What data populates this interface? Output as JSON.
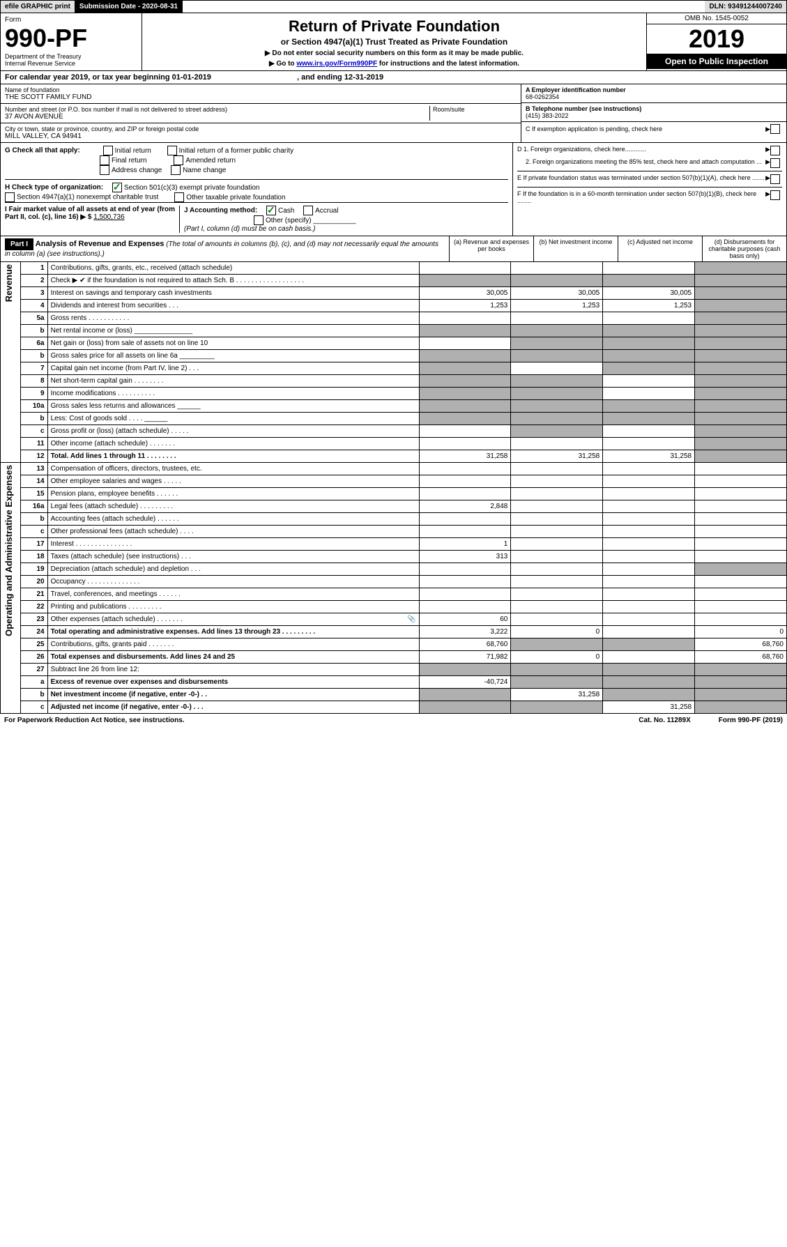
{
  "topbar": {
    "efile": "efile GRAPHIC print",
    "subdate_label": "Submission Date - 2020-08-31",
    "dln": "DLN: 93491244007240"
  },
  "header": {
    "form_label": "Form",
    "form_number": "990-PF",
    "dept1": "Department of the Treasury",
    "dept2": "Internal Revenue Service",
    "title": "Return of Private Foundation",
    "subtitle": "or Section 4947(a)(1) Trust Treated as Private Foundation",
    "note1": "▶ Do not enter social security numbers on this form as it may be made public.",
    "note2_prefix": "▶ Go to ",
    "note2_link": "www.irs.gov/Form990PF",
    "note2_suffix": " for instructions and the latest information.",
    "omb": "OMB No. 1545-0052",
    "year": "2019",
    "open": "Open to Public Inspection"
  },
  "calyear": {
    "text": "For calendar year 2019, or tax year beginning 01-01-2019",
    "ending": ", and ending 12-31-2019"
  },
  "entity": {
    "name_label": "Name of foundation",
    "name": "THE SCOTT FAMILY FUND",
    "addr_label": "Number and street (or P.O. box number if mail is not delivered to street address)",
    "addr": "37 AVON AVENUE",
    "room_label": "Room/suite",
    "city_label": "City or town, state or province, country, and ZIP or foreign postal code",
    "city": "MILL VALLEY, CA  94941",
    "a_label": "A Employer identification number",
    "a_val": "68-0262354",
    "b_label": "B Telephone number (see instructions)",
    "b_val": "(415) 383-2022",
    "c_label": "C If exemption application is pending, check here"
  },
  "checks": {
    "g_label": "G Check all that apply:",
    "g_opts": [
      "Initial return",
      "Initial return of a former public charity",
      "Final return",
      "Amended return",
      "Address change",
      "Name change"
    ],
    "h_label": "H Check type of organization:",
    "h_opt1": "Section 501(c)(3) exempt private foundation",
    "h_opt2": "Section 4947(a)(1) nonexempt charitable trust",
    "h_opt3": "Other taxable private foundation",
    "i_label": "I Fair market value of all assets at end of year (from Part II, col. (c), line 16) ▶ $",
    "i_val": "1,500,736",
    "j_label": "J Accounting method:",
    "j_cash": "Cash",
    "j_accrual": "Accrual",
    "j_other": "Other (specify)",
    "j_note": "(Part I, column (d) must be on cash basis.)",
    "d1": "D 1. Foreign organizations, check here............",
    "d2": "2. Foreign organizations meeting the 85% test, check here and attach computation ...",
    "e": "E  If private foundation status was terminated under section 507(b)(1)(A), check here .......",
    "f": "F  If the foundation is in a 60-month termination under section 507(b)(1)(B), check here ........"
  },
  "part1": {
    "label": "Part I",
    "title": "Analysis of Revenue and Expenses",
    "title_note": "(The total of amounts in columns (b), (c), and (d) may not necessarily equal the amounts in column (a) (see instructions).)",
    "col_a": "(a)   Revenue and expenses per books",
    "col_b": "(b)  Net investment income",
    "col_c": "(c)  Adjusted net income",
    "col_d": "(d)  Disbursements for charitable purposes (cash basis only)"
  },
  "sections": {
    "revenue": "Revenue",
    "expenses": "Operating and Administrative Expenses"
  },
  "rows": [
    {
      "n": "1",
      "label": "Contributions, gifts, grants, etc., received (attach schedule)",
      "a": "",
      "b": "",
      "c": "",
      "d": "gray"
    },
    {
      "n": "2",
      "label": "Check ▶ ✔ if the foundation is not required to attach Sch. B  . . . . . . . . . . . . . . . . . .",
      "a": "gray",
      "b": "gray",
      "c": "gray",
      "d": "gray"
    },
    {
      "n": "3",
      "label": "Interest on savings and temporary cash investments",
      "a": "30,005",
      "b": "30,005",
      "c": "30,005",
      "d": "gray"
    },
    {
      "n": "4",
      "label": "Dividends and interest from securities   .   .   .",
      "a": "1,253",
      "b": "1,253",
      "c": "1,253",
      "d": "gray"
    },
    {
      "n": "5a",
      "label": "Gross rents   .   .   .   .   .   .   .   .   .   .   .",
      "a": "",
      "b": "",
      "c": "",
      "d": "gray"
    },
    {
      "n": "b",
      "label": "Net rental income or (loss)  _______________",
      "a": "gray",
      "b": "gray",
      "c": "gray",
      "d": "gray"
    },
    {
      "n": "6a",
      "label": "Net gain or (loss) from sale of assets not on line 10",
      "a": "",
      "b": "gray",
      "c": "gray",
      "d": "gray"
    },
    {
      "n": "b",
      "label": "Gross sales price for all assets on line 6a  _________",
      "a": "gray",
      "b": "gray",
      "c": "gray",
      "d": "gray"
    },
    {
      "n": "7",
      "label": "Capital gain net income (from Part IV, line 2)   .   .   .",
      "a": "gray",
      "b": "",
      "c": "gray",
      "d": "gray"
    },
    {
      "n": "8",
      "label": "Net short-term capital gain   .   .   .   .   .   .   .   .",
      "a": "gray",
      "b": "gray",
      "c": "",
      "d": "gray"
    },
    {
      "n": "9",
      "label": "Income modifications   .   .   .   .   .   .   .   .   .   .",
      "a": "gray",
      "b": "gray",
      "c": "",
      "d": "gray"
    },
    {
      "n": "10a",
      "label": "Gross sales less returns and allowances   ______",
      "a": "gray",
      "b": "gray",
      "c": "gray",
      "d": "gray"
    },
    {
      "n": "b",
      "label": "Less: Cost of goods sold   .   .   .   .   ______",
      "a": "gray",
      "b": "gray",
      "c": "gray",
      "d": "gray"
    },
    {
      "n": "c",
      "label": "Gross profit or (loss) (attach schedule)   .   .   .   .   .",
      "a": "",
      "b": "gray",
      "c": "",
      "d": "gray"
    },
    {
      "n": "11",
      "label": "Other income (attach schedule)   .   .   .   .   .   .   .",
      "a": "",
      "b": "",
      "c": "",
      "d": "gray"
    },
    {
      "n": "12",
      "label": "Total. Add lines 1 through 11   .   .   .   .   .   .   .   .",
      "a": "31,258",
      "b": "31,258",
      "c": "31,258",
      "d": "gray",
      "bold": true
    }
  ],
  "rows2": [
    {
      "n": "13",
      "label": "Compensation of officers, directors, trustees, etc.",
      "a": "",
      "b": "",
      "c": "",
      "d": ""
    },
    {
      "n": "14",
      "label": "Other employee salaries and wages   .   .   .   .   .",
      "a": "",
      "b": "",
      "c": "",
      "d": ""
    },
    {
      "n": "15",
      "label": "Pension plans, employee benefits   .   .   .   .   .   .",
      "a": "",
      "b": "",
      "c": "",
      "d": ""
    },
    {
      "n": "16a",
      "label": "Legal fees (attach schedule)  .   .   .   .   .   .   .   .   .",
      "a": "2,848",
      "b": "",
      "c": "",
      "d": ""
    },
    {
      "n": "b",
      "label": "Accounting fees (attach schedule)   .   .   .   .   .   .",
      "a": "",
      "b": "",
      "c": "",
      "d": ""
    },
    {
      "n": "c",
      "label": "Other professional fees (attach schedule)   .   .   .   .",
      "a": "",
      "b": "",
      "c": "",
      "d": ""
    },
    {
      "n": "17",
      "label": "Interest   .   .   .   .   .   .   .   .   .   .   .   .   .   .   .",
      "a": "1",
      "b": "",
      "c": "",
      "d": ""
    },
    {
      "n": "18",
      "label": "Taxes (attach schedule) (see instructions)   .   .   .",
      "a": "313",
      "b": "",
      "c": "",
      "d": ""
    },
    {
      "n": "19",
      "label": "Depreciation (attach schedule) and depletion   .   .   .",
      "a": "",
      "b": "",
      "c": "",
      "d": "gray"
    },
    {
      "n": "20",
      "label": "Occupancy  .   .   .   .   .   .   .   .   .   .   .   .   .   .",
      "a": "",
      "b": "",
      "c": "",
      "d": ""
    },
    {
      "n": "21",
      "label": "Travel, conferences, and meetings   .   .   .   .   .   .",
      "a": "",
      "b": "",
      "c": "",
      "d": ""
    },
    {
      "n": "22",
      "label": "Printing and publications   .   .   .   .   .   .   .   .   .",
      "a": "",
      "b": "",
      "c": "",
      "d": ""
    },
    {
      "n": "23",
      "label": "Other expenses (attach schedule)   .   .   .   .   .   .   .",
      "a": "60",
      "b": "",
      "c": "",
      "d": "",
      "icon": true
    },
    {
      "n": "24",
      "label": "Total operating and administrative expenses. Add lines 13 through 23   .   .   .   .   .   .   .   .   .",
      "a": "3,222",
      "b": "0",
      "c": "",
      "d": "0",
      "bold": true
    },
    {
      "n": "25",
      "label": "Contributions, gifts, grants paid   .   .   .   .   .   .   .",
      "a": "68,760",
      "b": "gray",
      "c": "gray",
      "d": "68,760"
    },
    {
      "n": "26",
      "label": "Total expenses and disbursements. Add lines 24 and 25",
      "a": "71,982",
      "b": "0",
      "c": "",
      "d": "68,760",
      "bold": true
    },
    {
      "n": "27",
      "label": "Subtract line 26 from line 12:",
      "a": "gray",
      "b": "gray",
      "c": "gray",
      "d": "gray"
    },
    {
      "n": "a",
      "label": "Excess of revenue over expenses and disbursements",
      "a": "-40,724",
      "b": "gray",
      "c": "gray",
      "d": "gray",
      "bold": true
    },
    {
      "n": "b",
      "label": "Net investment income (if negative, enter -0-)   .   .",
      "a": "gray",
      "b": "31,258",
      "c": "gray",
      "d": "gray",
      "bold": true
    },
    {
      "n": "c",
      "label": "Adjusted net income (if negative, enter -0-)   .   .   .",
      "a": "gray",
      "b": "gray",
      "c": "31,258",
      "d": "gray",
      "bold": true
    }
  ],
  "footer": {
    "left": "For Paperwork Reduction Act Notice, see instructions.",
    "center": "Cat. No. 11289X",
    "right": "Form 990-PF (2019)"
  }
}
